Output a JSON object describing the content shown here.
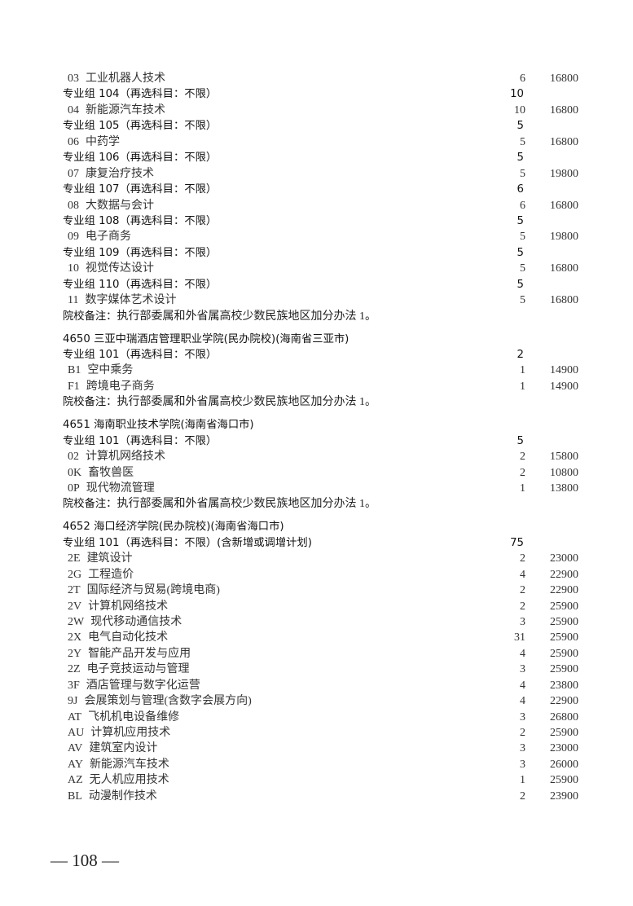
{
  "rows": [
    {
      "type": "item",
      "code": "03",
      "name": "工业机器人技术",
      "count": "6",
      "price": "16800"
    },
    {
      "type": "group",
      "label": "专业组 104（再选科目：不限）",
      "count": "10"
    },
    {
      "type": "item",
      "code": "04",
      "name": "新能源汽车技术",
      "count": "10",
      "price": "16800"
    },
    {
      "type": "group",
      "label": "专业组 105（再选科目：不限）",
      "count": "5"
    },
    {
      "type": "item",
      "code": "06",
      "name": "中药学",
      "count": "5",
      "price": "16800"
    },
    {
      "type": "group",
      "label": "专业组 106（再选科目：不限）",
      "count": "5"
    },
    {
      "type": "item",
      "code": "07",
      "name": "康复治疗技术",
      "count": "5",
      "price": "19800"
    },
    {
      "type": "group",
      "label": "专业组 107（再选科目：不限）",
      "count": "6"
    },
    {
      "type": "item",
      "code": "08",
      "name": "大数据与会计",
      "count": "6",
      "price": "16800"
    },
    {
      "type": "group",
      "label": "专业组 108（再选科目：不限）",
      "count": "5"
    },
    {
      "type": "item",
      "code": "09",
      "name": "电子商务",
      "count": "5",
      "price": "19800"
    },
    {
      "type": "group",
      "label": "专业组 109（再选科目：不限）",
      "count": "5"
    },
    {
      "type": "item",
      "code": "10",
      "name": "视觉传达设计",
      "count": "5",
      "price": "16800"
    },
    {
      "type": "group",
      "label": "专业组 110（再选科目：不限）",
      "count": "5"
    },
    {
      "type": "item",
      "code": "11",
      "name": "数字媒体艺术设计",
      "count": "5",
      "price": "16800"
    },
    {
      "type": "remark",
      "label": "院校备注：",
      "text": "执行部委属和外省属高校少数民族地区加分办法 1。"
    },
    {
      "type": "school",
      "label": "4650  三亚中瑞酒店管理职业学院(民办院校)(海南省三亚市)"
    },
    {
      "type": "group",
      "label": "专业组 101（再选科目：不限）",
      "count": "2"
    },
    {
      "type": "item",
      "code": "B1",
      "name": "空中乘务",
      "count": "1",
      "price": "14900"
    },
    {
      "type": "item",
      "code": "F1",
      "name": "跨境电子商务",
      "count": "1",
      "price": "14900"
    },
    {
      "type": "remark",
      "label": "院校备注：",
      "text": "执行部委属和外省属高校少数民族地区加分办法 1。"
    },
    {
      "type": "school",
      "label": "4651  海南职业技术学院(海南省海口市)"
    },
    {
      "type": "group",
      "label": "专业组 101（再选科目：不限）",
      "count": "5"
    },
    {
      "type": "item",
      "code": "02",
      "name": "计算机网络技术",
      "count": "2",
      "price": "15800"
    },
    {
      "type": "item",
      "code": "0K",
      "name": "畜牧兽医",
      "count": "2",
      "price": "10800"
    },
    {
      "type": "item",
      "code": "0P",
      "name": "现代物流管理",
      "count": "1",
      "price": "13800"
    },
    {
      "type": "remark",
      "label": "院校备注：",
      "text": "执行部委属和外省属高校少数民族地区加分办法 1。"
    },
    {
      "type": "school",
      "label": "4652  海口经济学院(民办院校)(海南省海口市)"
    },
    {
      "type": "group",
      "label": "专业组 101（再选科目：不限）(含新增或调增计划)",
      "count": "75"
    },
    {
      "type": "item",
      "code": "2E",
      "name": "建筑设计",
      "count": "2",
      "price": "23000"
    },
    {
      "type": "item",
      "code": "2G",
      "name": "工程造价",
      "count": "4",
      "price": "22900"
    },
    {
      "type": "item",
      "code": "2T",
      "name": "国际经济与贸易(跨境电商)",
      "count": "2",
      "price": "22900"
    },
    {
      "type": "item",
      "code": "2V",
      "name": "计算机网络技术",
      "count": "2",
      "price": "25900"
    },
    {
      "type": "item",
      "code": "2W",
      "name": "现代移动通信技术",
      "count": "3",
      "price": "25900"
    },
    {
      "type": "item",
      "code": "2X",
      "name": "电气自动化技术",
      "count": "31",
      "price": "25900"
    },
    {
      "type": "item",
      "code": "2Y",
      "name": "智能产品开发与应用",
      "count": "4",
      "price": "25900"
    },
    {
      "type": "item",
      "code": "2Z",
      "name": "电子竞技运动与管理",
      "count": "3",
      "price": "25900"
    },
    {
      "type": "item",
      "code": "3F",
      "name": "酒店管理与数字化运营",
      "count": "4",
      "price": "23800"
    },
    {
      "type": "item",
      "code": "9J",
      "name": "会展策划与管理(含数字会展方向)",
      "count": "4",
      "price": "22900"
    },
    {
      "type": "item",
      "code": "AT",
      "name": "飞机机电设备维修",
      "count": "3",
      "price": "26800"
    },
    {
      "type": "item",
      "code": "AU",
      "name": "计算机应用技术",
      "count": "2",
      "price": "25900"
    },
    {
      "type": "item",
      "code": "AV",
      "name": "建筑室内设计",
      "count": "3",
      "price": "23000"
    },
    {
      "type": "item",
      "code": "AY",
      "name": "新能源汽车技术",
      "count": "3",
      "price": "26000"
    },
    {
      "type": "item",
      "code": "AZ",
      "name": "无人机应用技术",
      "count": "1",
      "price": "25900"
    },
    {
      "type": "item",
      "code": "BL",
      "name": "动漫制作技术",
      "count": "2",
      "price": "23900"
    }
  ],
  "footer": {
    "page_number": "— 108 —"
  }
}
